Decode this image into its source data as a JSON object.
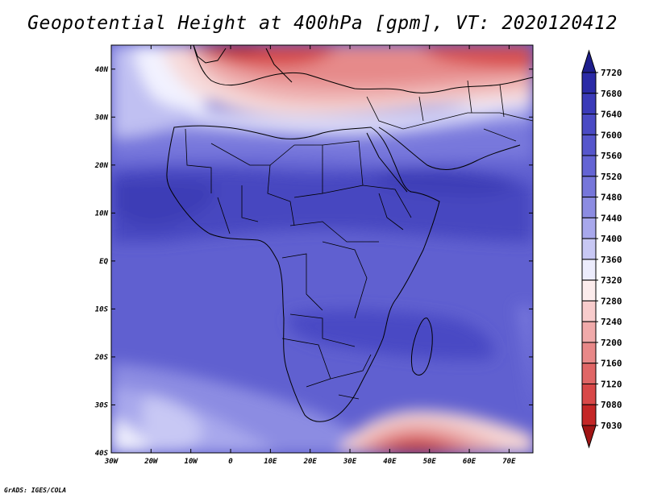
{
  "title": "Geopotential Height at 400hPa [gpm], VT: 2020120412",
  "credit": "GrADS: IGES/COLA",
  "chart_data": {
    "type": "heatmap",
    "title": "Geopotential Height at 400hPa [gpm], VT: 2020120412",
    "x_range": [
      -30,
      76
    ],
    "y_range": [
      -40,
      45
    ],
    "x_ticks": [
      "30W",
      "20W",
      "10W",
      "0",
      "10E",
      "20E",
      "30E",
      "40E",
      "50E",
      "60E",
      "70E"
    ],
    "x_tick_values": [
      -30,
      -20,
      -10,
      0,
      10,
      20,
      30,
      40,
      50,
      60,
      70
    ],
    "y_ticks": [
      "40S",
      "30S",
      "20S",
      "10S",
      "EQ",
      "10N",
      "20N",
      "30N",
      "40N"
    ],
    "y_tick_values": [
      -40,
      -30,
      -20,
      -10,
      0,
      10,
      20,
      30,
      40
    ],
    "colorbar": {
      "levels": [
        "7720",
        "7680",
        "7640",
        "7600",
        "7560",
        "7520",
        "7480",
        "7440",
        "7400",
        "7360",
        "7320",
        "7280",
        "7240",
        "7200",
        "7160",
        "7120",
        "7080",
        "7030"
      ],
      "colors": [
        "#1e1e8c",
        "#2a2aa6",
        "#3a3ab8",
        "#4a4ac4",
        "#5656cc",
        "#6464d4",
        "#7676da",
        "#8c8ce2",
        "#a8a8ec",
        "#c8c8f4",
        "#ececfc",
        "#fcecec",
        "#f8cccc",
        "#f0aaaa",
        "#e88888",
        "#e06666",
        "#d84848",
        "#c42626",
        "#a01414"
      ]
    },
    "features": [
      {
        "name": "high-height-band",
        "lon": [
          -30,
          70
        ],
        "lat": [
          -10,
          20
        ],
        "level": "7560-7600"
      },
      {
        "name": "mediterranean-low",
        "lon": [
          -5,
          75
        ],
        "lat": [
          30,
          45
        ],
        "level": "7080-7240"
      },
      {
        "name": "southern-ocean-low",
        "lon": [
          30,
          60
        ],
        "lat": [
          -40,
          -32
        ],
        "level": "7080-7200"
      }
    ]
  }
}
